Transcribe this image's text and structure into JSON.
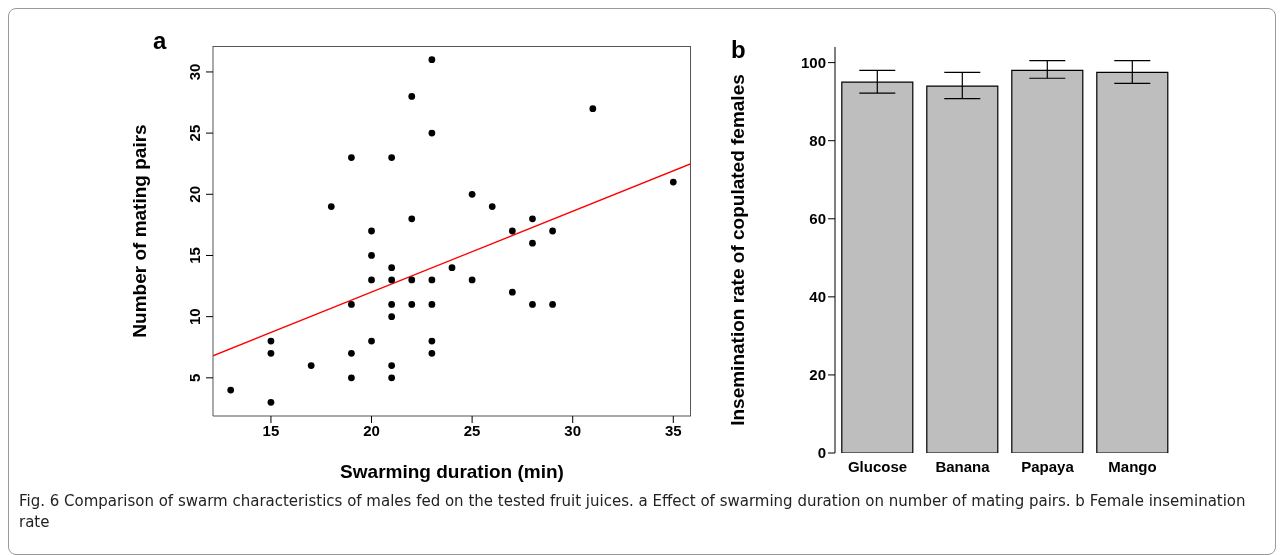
{
  "chart_data": [
    {
      "type": "scatter",
      "title": "a",
      "xlabel": "Swarming duration (min)",
      "ylabel": "Number of mating pairs",
      "xlim": [
        12.12,
        35.88
      ],
      "xticks": [
        15,
        20,
        25,
        30,
        35
      ],
      "ylim": [
        1.88,
        32.12
      ],
      "yticks": [
        5,
        10,
        15,
        20,
        25,
        30
      ],
      "grid": false,
      "series": [
        {
          "type": "scatter",
          "color": "#000000",
          "marker": "circle",
          "x": [
            13,
            15,
            15,
            15,
            17,
            18,
            19,
            19,
            19,
            19,
            20,
            20,
            20,
            20,
            21,
            21,
            21,
            21,
            21,
            21,
            21,
            22,
            22,
            22,
            22,
            23,
            23,
            23,
            23,
            23,
            23,
            24,
            25,
            25,
            26,
            27,
            27,
            28,
            28,
            28,
            29,
            29,
            31,
            35
          ],
          "values": [
            4,
            8,
            7,
            3,
            6,
            19,
            23,
            11,
            7,
            5,
            17,
            15,
            13,
            8,
            23,
            14,
            13,
            11,
            10,
            6,
            5,
            28,
            18,
            13,
            11,
            31,
            25,
            13,
            11,
            8,
            7,
            14,
            20,
            13,
            19,
            17,
            12,
            18,
            16,
            11,
            17,
            11,
            27,
            21
          ]
        },
        {
          "type": "line",
          "color": "#ff0000",
          "x": [
            12.12,
            35.88
          ],
          "values": [
            6.8,
            22.5
          ]
        }
      ],
      "annotations": [
        "Fig. 6  Comparison of swarm characteristics of males fed on the tested fruit juices. a Effect of swarming duration on number of mating pairs. b Female insemination rate"
      ]
    },
    {
      "type": "bar",
      "title": "b",
      "ylabel": "Insemination rate of copulated females",
      "categories": [
        "Glucose",
        "Banana",
        "Papaya",
        "Mango"
      ],
      "values": [
        95,
        94,
        98,
        97.5
      ],
      "color": "#bebebe",
      "errors": [
        [
          92.2,
          98
        ],
        [
          90.8,
          97.5
        ],
        [
          96,
          100.5
        ],
        [
          94.7,
          100.5
        ]
      ],
      "ylim": [
        0,
        104
      ],
      "yticks": [
        0,
        20,
        40,
        60,
        80,
        100
      ],
      "grid": false
    }
  ]
}
